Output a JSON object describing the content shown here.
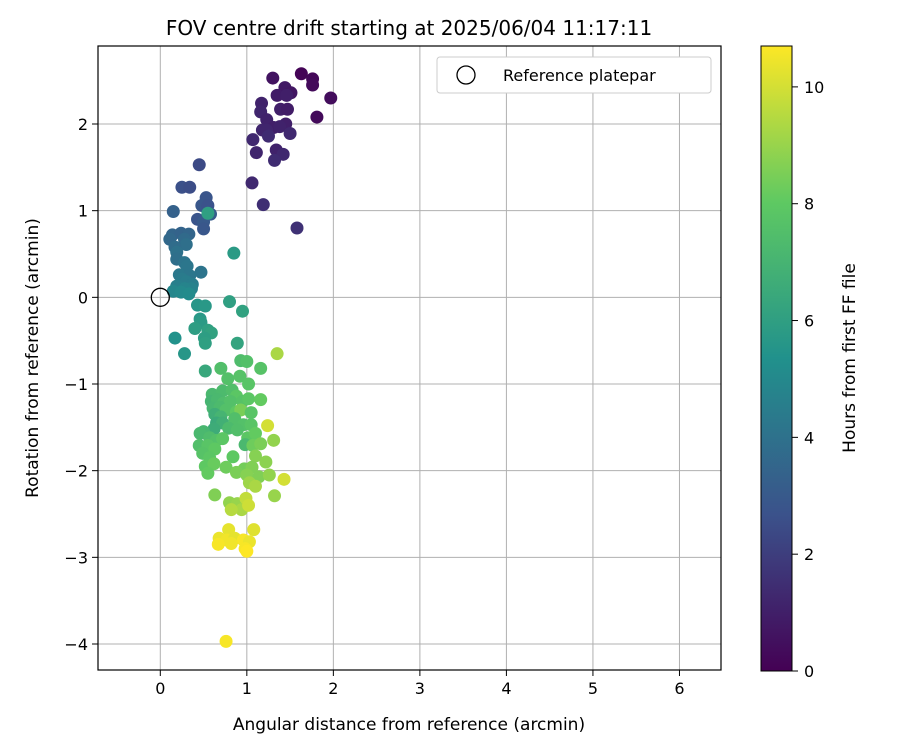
{
  "chart_data": {
    "type": "scatter",
    "title": "FOV centre drift starting at 2025/06/04 11:17:11",
    "xlabel": "Angular distance from reference (arcmin)",
    "ylabel": "Rotation from reference (arcmin)",
    "xlim": [
      -0.72,
      6.48
    ],
    "ylim": [
      -4.3,
      2.9
    ],
    "x_ticks": [
      0,
      1,
      2,
      3,
      4,
      5,
      6
    ],
    "y_ticks": [
      -4,
      -3,
      -2,
      -1,
      0,
      1,
      2
    ],
    "x_tick_labels": [
      "0",
      "1",
      "2",
      "3",
      "4",
      "5",
      "6"
    ],
    "y_tick_labels": [
      "−4",
      "−3",
      "−2",
      "−1",
      "0",
      "1",
      "2"
    ],
    "grid": true,
    "legend": {
      "position": "top-right",
      "entries": [
        {
          "label": "Reference platepar",
          "marker": "open-circle"
        }
      ]
    },
    "reference_point": {
      "x": 0.0,
      "y": 0.0
    },
    "colorbar": {
      "label": "Hours from first FF file",
      "colormap": "viridis",
      "range": [
        0,
        10.7
      ],
      "ticks": [
        0,
        2,
        4,
        6,
        8,
        10
      ],
      "tick_labels": [
        "0",
        "2",
        "4",
        "6",
        "8",
        "10"
      ]
    },
    "points": [
      {
        "x": 1.63,
        "y": 2.58,
        "c": 0.1
      },
      {
        "x": 1.76,
        "y": 2.52,
        "c": 0.2
      },
      {
        "x": 1.76,
        "y": 2.45,
        "c": 0.3
      },
      {
        "x": 1.3,
        "y": 2.53,
        "c": 0.6
      },
      {
        "x": 1.97,
        "y": 2.3,
        "c": 0.4
      },
      {
        "x": 1.81,
        "y": 2.08,
        "c": 0.3
      },
      {
        "x": 1.44,
        "y": 2.42,
        "c": 0.8
      },
      {
        "x": 1.51,
        "y": 2.36,
        "c": 0.7
      },
      {
        "x": 1.35,
        "y": 2.33,
        "c": 0.9
      },
      {
        "x": 1.46,
        "y": 2.33,
        "c": 1.0
      },
      {
        "x": 1.17,
        "y": 2.24,
        "c": 1.1
      },
      {
        "x": 1.39,
        "y": 2.17,
        "c": 1.0
      },
      {
        "x": 1.47,
        "y": 2.17,
        "c": 0.9
      },
      {
        "x": 1.16,
        "y": 2.14,
        "c": 1.2
      },
      {
        "x": 1.23,
        "y": 2.05,
        "c": 1.1
      },
      {
        "x": 1.45,
        "y": 2.0,
        "c": 1.0
      },
      {
        "x": 1.18,
        "y": 1.93,
        "c": 1.2
      },
      {
        "x": 1.31,
        "y": 1.96,
        "c": 1.0
      },
      {
        "x": 1.38,
        "y": 1.97,
        "c": 1.1
      },
      {
        "x": 1.5,
        "y": 1.89,
        "c": 1.3
      },
      {
        "x": 1.23,
        "y": 1.93,
        "c": 1.2
      },
      {
        "x": 1.07,
        "y": 1.82,
        "c": 1.3
      },
      {
        "x": 1.25,
        "y": 1.86,
        "c": 1.4
      },
      {
        "x": 1.11,
        "y": 1.67,
        "c": 1.2
      },
      {
        "x": 1.34,
        "y": 1.7,
        "c": 1.1
      },
      {
        "x": 1.42,
        "y": 1.65,
        "c": 1.3
      },
      {
        "x": 1.32,
        "y": 1.58,
        "c": 1.4
      },
      {
        "x": 1.06,
        "y": 1.32,
        "c": 1.3
      },
      {
        "x": 1.19,
        "y": 1.07,
        "c": 1.5
      },
      {
        "x": 1.58,
        "y": 0.8,
        "c": 1.6
      },
      {
        "x": 0.45,
        "y": 1.53,
        "c": 2.4
      },
      {
        "x": 0.25,
        "y": 1.27,
        "c": 2.6
      },
      {
        "x": 0.34,
        "y": 1.27,
        "c": 2.5
      },
      {
        "x": 0.53,
        "y": 1.15,
        "c": 2.8
      },
      {
        "x": 0.48,
        "y": 1.06,
        "c": 2.9
      },
      {
        "x": 0.55,
        "y": 1.06,
        "c": 2.7
      },
      {
        "x": 0.15,
        "y": 0.99,
        "c": 3.3
      },
      {
        "x": 0.58,
        "y": 0.96,
        "c": 3.1
      },
      {
        "x": 0.43,
        "y": 0.9,
        "c": 2.8
      },
      {
        "x": 0.5,
        "y": 0.87,
        "c": 3.0
      },
      {
        "x": 0.5,
        "y": 0.79,
        "c": 2.9
      },
      {
        "x": 0.14,
        "y": 0.72,
        "c": 3.5
      },
      {
        "x": 0.24,
        "y": 0.74,
        "c": 3.4
      },
      {
        "x": 0.33,
        "y": 0.73,
        "c": 3.5
      },
      {
        "x": 0.11,
        "y": 0.67,
        "c": 3.6
      },
      {
        "x": 0.28,
        "y": 0.67,
        "c": 3.7
      },
      {
        "x": 0.3,
        "y": 0.61,
        "c": 3.9
      },
      {
        "x": 0.17,
        "y": 0.58,
        "c": 3.8
      },
      {
        "x": 0.19,
        "y": 0.52,
        "c": 4.0
      },
      {
        "x": 0.19,
        "y": 0.44,
        "c": 3.9
      },
      {
        "x": 0.28,
        "y": 0.4,
        "c": 4.1
      },
      {
        "x": 0.31,
        "y": 0.36,
        "c": 4.2
      },
      {
        "x": 0.47,
        "y": 0.29,
        "c": 4.1
      },
      {
        "x": 0.22,
        "y": 0.26,
        "c": 4.3
      },
      {
        "x": 0.34,
        "y": 0.25,
        "c": 4.2
      },
      {
        "x": 0.25,
        "y": 0.21,
        "c": 4.4
      },
      {
        "x": 0.3,
        "y": 0.18,
        "c": 4.5
      },
      {
        "x": 0.37,
        "y": 0.15,
        "c": 4.5
      },
      {
        "x": 0.19,
        "y": 0.13,
        "c": 4.6
      },
      {
        "x": 0.36,
        "y": 0.1,
        "c": 4.7
      },
      {
        "x": 0.28,
        "y": 0.1,
        "c": 4.8
      },
      {
        "x": 0.15,
        "y": 0.07,
        "c": 4.9
      },
      {
        "x": 0.24,
        "y": 0.06,
        "c": 5.0
      },
      {
        "x": 0.33,
        "y": 0.04,
        "c": 5.1
      },
      {
        "x": 0.43,
        "y": -0.09,
        "c": 5.6
      },
      {
        "x": 0.52,
        "y": -0.1,
        "c": 5.7
      },
      {
        "x": 0.8,
        "y": -0.05,
        "c": 6.0
      },
      {
        "x": 0.95,
        "y": -0.16,
        "c": 6.1
      },
      {
        "x": 0.46,
        "y": -0.25,
        "c": 5.7
      },
      {
        "x": 0.47,
        "y": -0.29,
        "c": 5.8
      },
      {
        "x": 0.4,
        "y": -0.36,
        "c": 5.9
      },
      {
        "x": 0.55,
        "y": -0.38,
        "c": 6.0
      },
      {
        "x": 0.59,
        "y": -0.41,
        "c": 6.1
      },
      {
        "x": 0.17,
        "y": -0.47,
        "c": 5.4
      },
      {
        "x": 0.51,
        "y": -0.47,
        "c": 5.9
      },
      {
        "x": 0.52,
        "y": -0.53,
        "c": 6.0
      },
      {
        "x": 0.89,
        "y": -0.53,
        "c": 6.2
      },
      {
        "x": 0.28,
        "y": -0.65,
        "c": 5.6
      },
      {
        "x": 0.52,
        "y": -0.85,
        "c": 6.4
      },
      {
        "x": 0.85,
        "y": 0.51,
        "c": 5.8
      },
      {
        "x": 0.55,
        "y": 0.97,
        "c": 6.0
      },
      {
        "x": 0.7,
        "y": -0.82,
        "c": 7.5
      },
      {
        "x": 0.93,
        "y": -0.73,
        "c": 7.4
      },
      {
        "x": 1.0,
        "y": -0.74,
        "c": 7.6
      },
      {
        "x": 1.16,
        "y": -0.82,
        "c": 7.7
      },
      {
        "x": 1.35,
        "y": -0.65,
        "c": 9.3
      },
      {
        "x": 0.78,
        "y": -0.94,
        "c": 7.6
      },
      {
        "x": 0.92,
        "y": -0.91,
        "c": 7.7
      },
      {
        "x": 1.02,
        "y": -1.0,
        "c": 7.8
      },
      {
        "x": 0.6,
        "y": -1.12,
        "c": 7.2
      },
      {
        "x": 0.72,
        "y": -1.08,
        "c": 7.3
      },
      {
        "x": 0.83,
        "y": -1.07,
        "c": 7.5
      },
      {
        "x": 0.88,
        "y": -1.14,
        "c": 7.9
      },
      {
        "x": 0.59,
        "y": -1.2,
        "c": 7.0
      },
      {
        "x": 0.66,
        "y": -1.18,
        "c": 7.2
      },
      {
        "x": 0.73,
        "y": -1.22,
        "c": 7.4
      },
      {
        "x": 0.81,
        "y": -1.2,
        "c": 7.6
      },
      {
        "x": 0.95,
        "y": -1.2,
        "c": 7.7
      },
      {
        "x": 1.02,
        "y": -1.17,
        "c": 7.9
      },
      {
        "x": 1.16,
        "y": -1.18,
        "c": 8.1
      },
      {
        "x": 0.61,
        "y": -1.28,
        "c": 7.1
      },
      {
        "x": 0.69,
        "y": -1.27,
        "c": 7.3
      },
      {
        "x": 0.76,
        "y": -1.3,
        "c": 7.6
      },
      {
        "x": 0.88,
        "y": -1.32,
        "c": 8.0
      },
      {
        "x": 0.93,
        "y": -1.3,
        "c": 8.5
      },
      {
        "x": 0.63,
        "y": -1.35,
        "c": 6.7
      },
      {
        "x": 0.7,
        "y": -1.38,
        "c": 7.0
      },
      {
        "x": 0.86,
        "y": -1.4,
        "c": 7.5
      },
      {
        "x": 1.05,
        "y": -1.33,
        "c": 7.8
      },
      {
        "x": 0.65,
        "y": -1.45,
        "c": 6.5
      },
      {
        "x": 0.72,
        "y": -1.45,
        "c": 6.8
      },
      {
        "x": 0.96,
        "y": -1.47,
        "c": 7.6
      },
      {
        "x": 0.62,
        "y": -1.52,
        "c": 6.6
      },
      {
        "x": 0.5,
        "y": -1.55,
        "c": 7.1
      },
      {
        "x": 0.79,
        "y": -1.51,
        "c": 7.3
      },
      {
        "x": 0.89,
        "y": -1.53,
        "c": 7.5
      },
      {
        "x": 1.05,
        "y": -1.47,
        "c": 7.8
      },
      {
        "x": 1.24,
        "y": -1.48,
        "c": 10.0
      },
      {
        "x": 0.46,
        "y": -1.57,
        "c": 7.2
      },
      {
        "x": 0.57,
        "y": -1.62,
        "c": 7.4
      },
      {
        "x": 0.65,
        "y": -1.65,
        "c": 7.6
      },
      {
        "x": 0.72,
        "y": -1.63,
        "c": 7.9
      },
      {
        "x": 1.01,
        "y": -1.62,
        "c": 7.9
      },
      {
        "x": 1.1,
        "y": -1.57,
        "c": 8.1
      },
      {
        "x": 0.45,
        "y": -1.71,
        "c": 7.5
      },
      {
        "x": 0.55,
        "y": -1.71,
        "c": 7.8
      },
      {
        "x": 0.63,
        "y": -1.75,
        "c": 8.0
      },
      {
        "x": 0.98,
        "y": -1.7,
        "c": 7.2
      },
      {
        "x": 1.07,
        "y": -1.71,
        "c": 8.3
      },
      {
        "x": 1.16,
        "y": -1.69,
        "c": 8.5
      },
      {
        "x": 1.31,
        "y": -1.65,
        "c": 8.9
      },
      {
        "x": 0.49,
        "y": -1.8,
        "c": 7.7
      },
      {
        "x": 0.57,
        "y": -1.85,
        "c": 7.9
      },
      {
        "x": 0.84,
        "y": -1.84,
        "c": 8.0
      },
      {
        "x": 1.1,
        "y": -1.83,
        "c": 8.7
      },
      {
        "x": 0.52,
        "y": -1.95,
        "c": 8.0
      },
      {
        "x": 0.62,
        "y": -1.92,
        "c": 8.2
      },
      {
        "x": 0.76,
        "y": -1.96,
        "c": 8.3
      },
      {
        "x": 0.97,
        "y": -1.98,
        "c": 8.4
      },
      {
        "x": 1.06,
        "y": -1.96,
        "c": 8.6
      },
      {
        "x": 1.22,
        "y": -1.9,
        "c": 8.8
      },
      {
        "x": 0.55,
        "y": -2.03,
        "c": 8.1
      },
      {
        "x": 0.88,
        "y": -2.02,
        "c": 8.5
      },
      {
        "x": 1.0,
        "y": -2.05,
        "c": 8.7
      },
      {
        "x": 1.14,
        "y": -2.07,
        "c": 8.6
      },
      {
        "x": 1.26,
        "y": -2.05,
        "c": 8.9
      },
      {
        "x": 1.43,
        "y": -2.1,
        "c": 10.0
      },
      {
        "x": 1.03,
        "y": -2.14,
        "c": 9.1
      },
      {
        "x": 1.1,
        "y": -2.18,
        "c": 9.3
      },
      {
        "x": 0.63,
        "y": -2.28,
        "c": 8.6
      },
      {
        "x": 1.32,
        "y": -2.29,
        "c": 9.0
      },
      {
        "x": 0.8,
        "y": -2.37,
        "c": 8.9
      },
      {
        "x": 0.89,
        "y": -2.38,
        "c": 9.0
      },
      {
        "x": 0.99,
        "y": -2.32,
        "c": 9.7
      },
      {
        "x": 0.94,
        "y": -2.45,
        "c": 9.3
      },
      {
        "x": 0.82,
        "y": -2.45,
        "c": 9.5
      },
      {
        "x": 1.02,
        "y": -2.4,
        "c": 9.9
      },
      {
        "x": 0.79,
        "y": -2.68,
        "c": 10.3
      },
      {
        "x": 1.08,
        "y": -2.68,
        "c": 10.2
      },
      {
        "x": 0.68,
        "y": -2.78,
        "c": 10.4
      },
      {
        "x": 0.77,
        "y": -2.8,
        "c": 10.5
      },
      {
        "x": 0.86,
        "y": -2.78,
        "c": 10.3
      },
      {
        "x": 0.96,
        "y": -2.8,
        "c": 10.6
      },
      {
        "x": 1.03,
        "y": -2.82,
        "c": 10.4
      },
      {
        "x": 0.67,
        "y": -2.85,
        "c": 10.6
      },
      {
        "x": 0.82,
        "y": -2.84,
        "c": 10.5
      },
      {
        "x": 0.98,
        "y": -2.9,
        "c": 10.6
      },
      {
        "x": 1.0,
        "y": -2.93,
        "c": 10.7
      },
      {
        "x": 0.76,
        "y": -3.97,
        "c": 10.6
      }
    ]
  }
}
